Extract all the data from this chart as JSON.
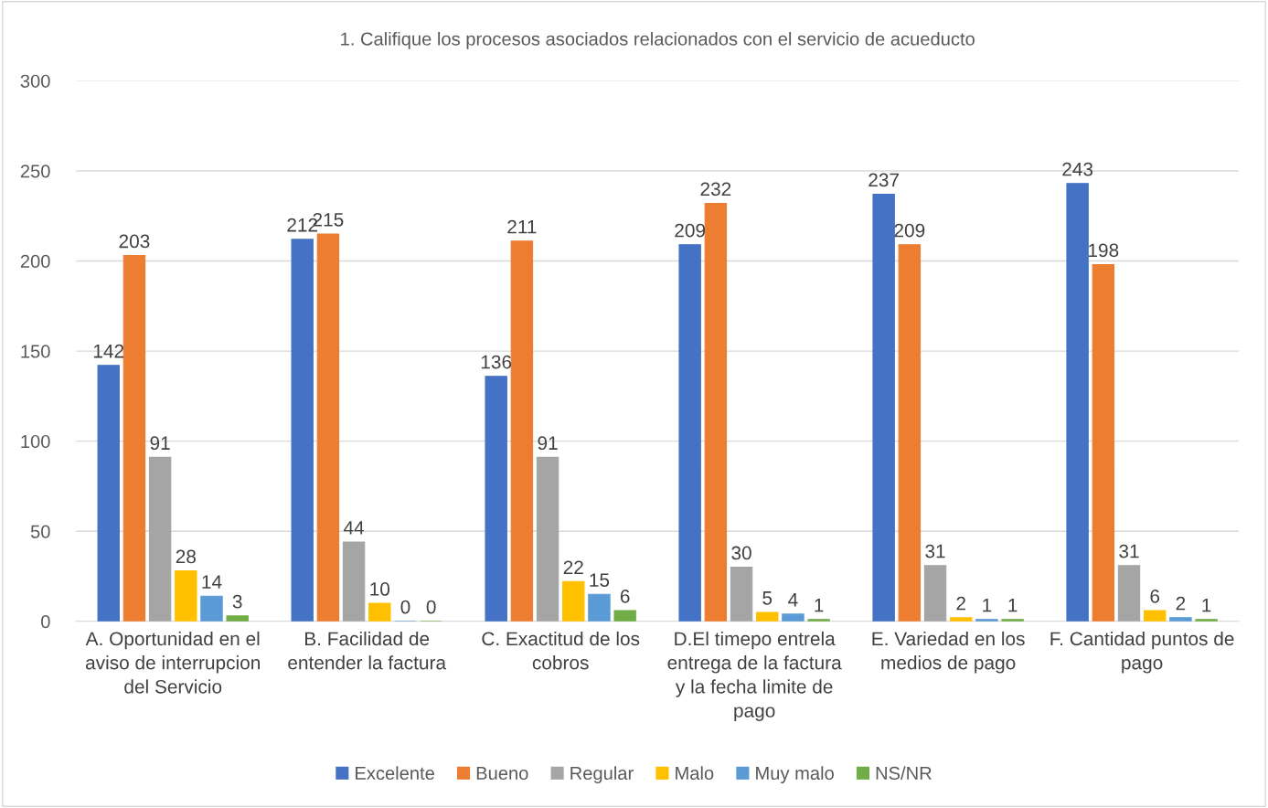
{
  "chart_data": {
    "type": "bar",
    "title": "1. Califique los procesos asociados relacionados con el servicio de acueducto",
    "categories": [
      "A. Oportunidad en el aviso de interrupcion del Servicio",
      "B. Facilidad de entender la factura",
      "C. Exactitud de los cobros",
      "D.El timepo entrela entrega de la factura y la fecha limite de pago",
      "E. Variedad en los medios de pago",
      "F. Cantidad puntos de pago"
    ],
    "series": [
      {
        "name": "Excelente",
        "color": "#4472c4",
        "values": [
          142,
          212,
          136,
          209,
          237,
          243
        ]
      },
      {
        "name": "Bueno",
        "color": "#ed7d31",
        "values": [
          203,
          215,
          211,
          232,
          209,
          198
        ]
      },
      {
        "name": "Regular",
        "color": "#a5a5a5",
        "values": [
          91,
          44,
          91,
          30,
          31,
          31
        ]
      },
      {
        "name": "Malo",
        "color": "#ffc000",
        "values": [
          28,
          10,
          22,
          5,
          2,
          6
        ]
      },
      {
        "name": "Muy malo",
        "color": "#5b9bd5",
        "values": [
          14,
          0,
          15,
          4,
          1,
          2
        ]
      },
      {
        "name": "NS/NR",
        "color": "#70ad47",
        "values": [
          3,
          0,
          6,
          1,
          1,
          1
        ]
      }
    ],
    "ylim": [
      0,
      300
    ],
    "yticks": [
      0,
      50,
      100,
      150,
      200,
      250,
      300
    ],
    "grid": "y",
    "legend": "bottom",
    "data_labels": true
  }
}
